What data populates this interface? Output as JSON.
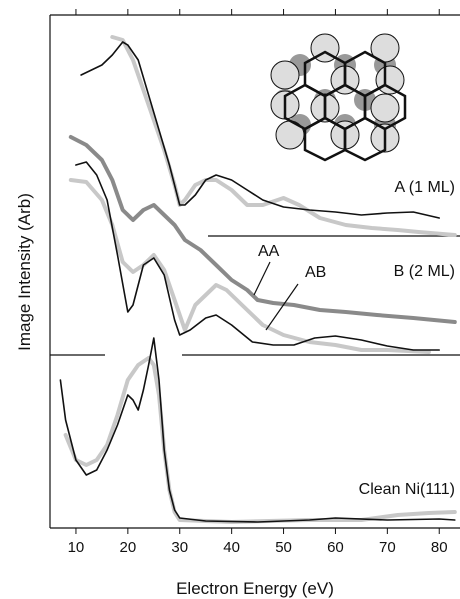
{
  "chart_data": {
    "type": "line",
    "x_label": "Electron Energy (eV)",
    "y_label": "Image Intensity (Arb)",
    "annotations": [
      "A (1 ML)",
      "B (2 ML)",
      "AA",
      "AB",
      "Clean Ni(111)"
    ],
    "xlim": [
      5,
      84
    ],
    "xticks": [
      10,
      20,
      30,
      40,
      50,
      60,
      70,
      80
    ],
    "ylim": [
      0,
      513
    ],
    "series": [
      {
        "color": "#c8c8c8",
        "x": [
          17,
          19,
          21,
          23,
          25,
          27,
          29,
          30,
          31,
          33,
          35,
          37,
          40,
          43,
          46,
          50,
          53,
          57,
          62,
          67,
          72,
          76,
          83
        ],
        "values": [
          491,
          488,
          468,
          438,
          408,
          378,
          343,
          323,
          328,
          343,
          348,
          348,
          338,
          323,
          323,
          330,
          323,
          310,
          303,
          300,
          298,
          296,
          293
        ]
      },
      {
        "color": "#111111",
        "x": [
          11,
          13,
          15,
          17,
          19,
          20,
          22,
          24,
          26,
          28,
          30,
          31,
          33,
          35,
          37,
          40,
          43,
          46,
          50,
          55,
          60,
          65,
          70,
          75,
          80
        ],
        "values": [
          453,
          458,
          463,
          473,
          486,
          483,
          468,
          433,
          398,
          363,
          323,
          323,
          333,
          348,
          353,
          348,
          338,
          328,
          321,
          318,
          316,
          313,
          315,
          316,
          310
        ]
      },
      {
        "color": "#8a8a8a",
        "x": [
          9,
          12,
          15,
          17,
          19,
          21,
          23,
          25,
          27,
          29,
          31,
          34,
          37,
          40,
          43,
          45,
          48,
          52,
          57,
          62,
          68,
          75,
          83
        ],
        "values": [
          391,
          383,
          368,
          348,
          318,
          308,
          318,
          323,
          313,
          303,
          288,
          278,
          263,
          248,
          238,
          228,
          225,
          223,
          218,
          216,
          213,
          210,
          206
        ]
      },
      {
        "color": "#c8c8c8",
        "x": [
          9,
          12,
          15,
          17,
          19,
          21,
          23,
          25,
          27,
          29,
          31,
          33,
          35,
          37,
          39,
          42,
          46,
          50,
          55,
          60,
          65,
          70,
          78
        ],
        "values": [
          348,
          346,
          328,
          303,
          266,
          256,
          263,
          273,
          258,
          228,
          198,
          223,
          233,
          243,
          238,
          223,
          203,
          193,
          186,
          183,
          178,
          178,
          176
        ]
      },
      {
        "color": "#111111",
        "x": [
          10,
          12,
          14,
          16,
          18,
          20,
          21,
          23,
          25,
          27,
          29,
          30,
          32,
          35,
          37,
          40,
          44,
          48,
          52,
          56,
          60,
          65,
          70,
          75,
          80
        ],
        "values": [
          363,
          366,
          353,
          328,
          273,
          216,
          223,
          263,
          270,
          253,
          208,
          193,
          198,
          210,
          213,
          203,
          186,
          183,
          183,
          190,
          192,
          188,
          182,
          178,
          178
        ]
      },
      {
        "color": "#c8c8c8",
        "x": [
          8,
          10,
          12,
          14,
          16,
          18,
          20,
          22,
          24,
          25,
          26,
          27,
          28,
          29,
          30,
          40,
          55,
          65,
          72,
          78,
          83
        ],
        "values": [
          93,
          68,
          63,
          68,
          83,
          113,
          148,
          163,
          170,
          163,
          133,
          78,
          38,
          16,
          8,
          6,
          8,
          8,
          13,
          15,
          16
        ]
      },
      {
        "color": "#111111",
        "x": [
          7,
          8,
          10,
          12,
          14,
          16,
          18,
          20,
          21,
          22,
          23,
          24,
          25,
          26,
          27,
          28,
          29,
          30,
          35,
          45,
          55,
          60,
          70,
          80,
          83
        ],
        "values": [
          148,
          108,
          68,
          53,
          58,
          78,
          103,
          133,
          128,
          118,
          138,
          163,
          190,
          148,
          78,
          38,
          18,
          10,
          7,
          6,
          8,
          10,
          8,
          9,
          8
        ]
      }
    ]
  }
}
